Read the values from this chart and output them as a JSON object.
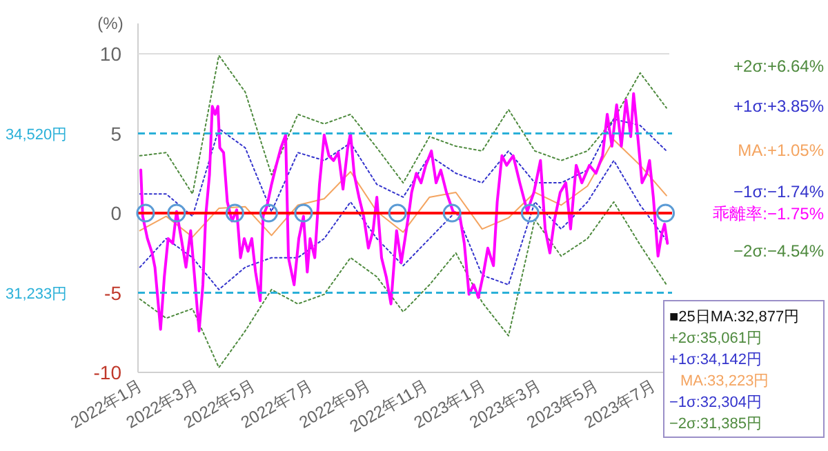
{
  "chart_data": {
    "type": "line",
    "ylabel": "(%)",
    "ylim": [
      -10,
      10
    ],
    "yticks": [
      -10,
      -5,
      0,
      5,
      10
    ],
    "xlim": [
      "2022-01-01",
      "2023-07-20"
    ],
    "xticks": [
      {
        "value": "2022-01",
        "label": "2022年1月"
      },
      {
        "value": "2022-03",
        "label": "2022年3月"
      },
      {
        "value": "2022-05",
        "label": "2022年5月"
      },
      {
        "value": "2022-07",
        "label": "2022年7月"
      },
      {
        "value": "2022-09",
        "label": "2022年9月"
      },
      {
        "value": "2022-11",
        "label": "2022年11月"
      },
      {
        "value": "2023-01",
        "label": "2023年1月"
      },
      {
        "value": "2023-03",
        "label": "2023年3月"
      },
      {
        "value": "2023-05",
        "label": "2023年5月"
      },
      {
        "value": "2023-07",
        "label": "2023年7月"
      }
    ],
    "series": [
      {
        "name": "乖離率:−1.75%",
        "color": "#ff00ff",
        "line_style": "solid",
        "x": [
          "2022-01-04",
          "2022-01-06",
          "2022-01-11",
          "2022-01-16",
          "2022-01-19",
          "2022-01-25",
          "2022-01-29",
          "2022-02-02",
          "2022-02-07",
          "2022-02-11",
          "2022-02-16",
          "2022-02-21",
          "2022-02-26",
          "2022-03-07",
          "2022-03-11",
          "2022-03-14",
          "2022-03-18",
          "2022-03-21",
          "2022-03-24",
          "2022-03-27",
          "2022-03-29",
          "2022-04-02",
          "2022-04-06",
          "2022-04-11",
          "2022-04-16",
          "2022-04-20",
          "2022-04-24",
          "2022-04-28",
          "2022-05-02",
          "2022-05-06",
          "2022-05-11",
          "2022-05-14",
          "2022-05-18",
          "2022-05-23",
          "2022-05-28",
          "2022-06-02",
          "2022-06-07",
          "2022-06-10",
          "2022-06-16",
          "2022-06-21",
          "2022-06-26",
          "2022-06-30",
          "2022-07-03",
          "2022-07-08",
          "2022-07-13",
          "2022-07-18",
          "2022-07-23",
          "2022-07-28",
          "2022-08-02",
          "2022-08-07",
          "2022-08-12",
          "2022-08-15",
          "2022-08-19",
          "2022-08-24",
          "2022-08-29",
          "2022-09-03",
          "2022-09-08",
          "2022-09-12",
          "2022-09-17",
          "2022-09-22",
          "2022-09-27",
          "2022-10-03",
          "2022-10-08",
          "2022-10-12",
          "2022-10-17",
          "2022-10-19",
          "2022-10-24",
          "2022-10-29",
          "2022-11-03",
          "2022-11-09",
          "2022-11-14",
          "2022-11-19",
          "2022-11-25",
          "2022-12-02",
          "2022-12-09",
          "2022-12-14",
          "2022-12-19",
          "2022-12-24",
          "2022-12-29",
          "2023-01-03",
          "2023-01-08",
          "2023-01-14",
          "2023-01-18",
          "2023-01-23",
          "2023-01-28",
          "2023-02-04",
          "2023-02-11",
          "2023-02-19",
          "2023-02-26",
          "2023-03-05",
          "2023-03-10",
          "2023-03-15",
          "2023-03-20",
          "2023-03-26",
          "2023-04-01",
          "2023-04-06",
          "2023-04-12",
          "2023-04-18",
          "2023-04-26",
          "2023-05-03",
          "2023-05-10",
          "2023-05-15",
          "2023-05-20",
          "2023-05-25",
          "2023-05-30",
          "2023-06-04",
          "2023-06-09",
          "2023-06-12",
          "2023-06-16",
          "2023-06-21",
          "2023-06-26",
          "2023-06-29",
          "2023-07-03",
          "2023-07-08",
          "2023-07-12",
          "2023-07-15",
          "2023-07-18"
        ],
        "values": [
          2.7,
          -0.2,
          -1.6,
          -2.5,
          -3.4,
          -7.3,
          -4.0,
          -1.6,
          -1.9,
          0.1,
          -1.6,
          -3.4,
          -1.1,
          -7.4,
          -4.5,
          -0.2,
          2.4,
          6.7,
          6.2,
          6.7,
          4.1,
          3.8,
          0.7,
          -0.5,
          0.2,
          -2.8,
          -1.6,
          -2.4,
          -1.6,
          -3.7,
          -5.5,
          -0.2,
          0.4,
          1.8,
          3.0,
          4.1,
          4.9,
          -2.8,
          -4.5,
          -1.6,
          -0.2,
          -3.7,
          -1.6,
          -2.8,
          1.8,
          4.9,
          3.6,
          3.3,
          3.8,
          1.5,
          4.1,
          5.0,
          2.4,
          1.0,
          -0.2,
          -2.2,
          -1.1,
          1.0,
          -2.8,
          -4.0,
          -5.7,
          -1.1,
          -3.1,
          -1.6,
          0.4,
          1.3,
          2.5,
          1.9,
          3.0,
          3.9,
          1.9,
          2.7,
          1.3,
          0.1,
          -0.1,
          -1.9,
          -5.1,
          -4.5,
          -5.3,
          -3.9,
          -2.2,
          -3.3,
          0.7,
          3.6,
          3.0,
          3.6,
          1.9,
          0.1,
          1.3,
          3.3,
          -1.0,
          -2.5,
          -0.4,
          1.3,
          1.9,
          -1.0,
          3.0,
          1.9,
          3.0,
          2.5,
          3.6,
          6.2,
          4.2,
          6.8,
          4.2,
          7.1,
          4.8,
          7.5,
          5.1,
          1.9,
          2.5,
          3.3,
          1.0,
          -2.7,
          -1.3,
          -0.7,
          -1.9
        ]
      },
      {
        "name": "+2σ:+6.64%",
        "color": "#4e8a3e",
        "line_style": "dotted",
        "x": [
          "2022-01-03",
          "2022-01-31",
          "2022-02-28",
          "2022-03-28",
          "2022-04-25",
          "2022-05-23",
          "2022-06-20",
          "2022-07-18",
          "2022-08-15",
          "2022-09-12",
          "2022-10-10",
          "2022-11-07",
          "2022-12-05",
          "2023-01-02",
          "2023-01-30",
          "2023-02-27",
          "2023-03-27",
          "2023-04-24",
          "2023-05-22",
          "2023-06-19",
          "2023-07-17"
        ],
        "values": [
          3.6,
          3.8,
          1.2,
          9.9,
          7.6,
          2.4,
          6.2,
          5.6,
          6.2,
          4.1,
          1.9,
          4.8,
          4.2,
          3.9,
          6.5,
          3.9,
          3.3,
          3.9,
          5.9,
          8.8,
          6.6
        ]
      },
      {
        "name": "+1σ:+3.85%",
        "color": "#3333cc",
        "line_style": "dotted",
        "x": [
          "2022-01-03",
          "2022-01-31",
          "2022-02-28",
          "2022-03-28",
          "2022-04-25",
          "2022-05-23",
          "2022-06-20",
          "2022-07-18",
          "2022-08-15",
          "2022-09-12",
          "2022-10-10",
          "2022-11-07",
          "2022-12-05",
          "2023-01-02",
          "2023-01-30",
          "2023-02-27",
          "2023-03-27",
          "2023-04-24",
          "2023-05-22",
          "2023-06-19",
          "2023-07-17"
        ],
        "values": [
          1.2,
          1.2,
          -0.2,
          5.3,
          4.1,
          0.1,
          3.8,
          3.3,
          4.4,
          1.8,
          1.0,
          3.6,
          2.5,
          1.9,
          3.9,
          1.9,
          1.9,
          2.7,
          5.9,
          5.5,
          3.9
        ]
      },
      {
        "name": "MA:+1.05%",
        "color": "#f4a460",
        "line_style": "solid",
        "x": [
          "2022-01-03",
          "2022-01-31",
          "2022-02-28",
          "2022-03-28",
          "2022-04-25",
          "2022-05-23",
          "2022-06-20",
          "2022-07-18",
          "2022-08-15",
          "2022-09-12",
          "2022-10-10",
          "2022-11-07",
          "2022-12-05",
          "2023-01-02",
          "2023-01-30",
          "2023-02-27",
          "2023-03-27",
          "2023-04-24",
          "2023-05-22",
          "2023-06-19",
          "2023-07-17"
        ],
        "values": [
          -1.1,
          -0.2,
          -1.5,
          0.3,
          0.4,
          -1.4,
          0.5,
          0.9,
          2.6,
          0.1,
          -1.2,
          1.0,
          1.3,
          -1.0,
          -0.3,
          1.3,
          0.5,
          1.7,
          4.6,
          3.0,
          1.1
        ]
      },
      {
        "name": "−1σ:−1.74%",
        "color": "#3333cc",
        "line_style": "dotted",
        "x": [
          "2022-01-03",
          "2022-01-31",
          "2022-02-28",
          "2022-03-28",
          "2022-04-25",
          "2022-05-23",
          "2022-06-20",
          "2022-07-18",
          "2022-08-15",
          "2022-09-12",
          "2022-10-10",
          "2022-11-07",
          "2022-12-05",
          "2023-01-02",
          "2023-01-30",
          "2023-02-27",
          "2023-03-27",
          "2023-04-24",
          "2023-05-22",
          "2023-06-19",
          "2023-07-17"
        ],
        "values": [
          -3.4,
          -1.6,
          -2.8,
          -4.8,
          -3.4,
          -2.8,
          -2.8,
          -1.6,
          0.7,
          -1.6,
          -3.3,
          -1.6,
          0.1,
          -3.9,
          -4.5,
          0.7,
          -1.0,
          0.7,
          3.3,
          0.5,
          -1.7
        ]
      },
      {
        "name": "−2σ:−4.54%",
        "color": "#4e8a3e",
        "line_style": "dotted",
        "x": [
          "2022-01-03",
          "2022-01-31",
          "2022-02-28",
          "2022-03-28",
          "2022-04-25",
          "2022-05-23",
          "2022-06-20",
          "2022-07-18",
          "2022-08-15",
          "2022-09-12",
          "2022-10-10",
          "2022-11-07",
          "2022-12-05",
          "2023-01-02",
          "2023-01-30",
          "2023-02-27",
          "2023-03-27",
          "2023-04-24",
          "2023-05-22",
          "2023-06-19",
          "2023-07-17"
        ],
        "values": [
          -5.4,
          -6.6,
          -6.0,
          -9.7,
          -7.4,
          -4.8,
          -5.7,
          -5.1,
          -2.8,
          -4.0,
          -6.2,
          -4.5,
          -2.5,
          -5.6,
          -7.7,
          -0.4,
          -2.7,
          -1.6,
          0.7,
          -2.0,
          -4.5
        ]
      },
      {
        "type": "scatter",
        "color": "#5b9bd5",
        "marker": "circle",
        "x": [
          "2022-01-09",
          "2022-02-11",
          "2022-04-14",
          "2022-05-20",
          "2022-06-26",
          "2022-10-04",
          "2022-12-01",
          "2023-02-22",
          "2023-07-16"
        ],
        "values": [
          0,
          0,
          0,
          0,
          0,
          0,
          0,
          0,
          0
        ]
      }
    ],
    "ref_lines": [
      {
        "axis": "y",
        "value": 0,
        "color": "#ff0000",
        "line_style": "solid"
      },
      {
        "axis": "y",
        "value": 5,
        "label": "34,520円",
        "color": "#2ab0d8",
        "line_style": "dashed"
      },
      {
        "axis": "y",
        "value": -5,
        "label": "31,233円",
        "color": "#2ab0d8",
        "line_style": "dashed"
      }
    ],
    "annotations": [
      "■25日MA:32,877円",
      "+2σ:35,061円",
      "+1σ:34,142円",
      "MA:33,223円",
      "−1σ:32,304円",
      "−2σ:31,385円"
    ]
  }
}
